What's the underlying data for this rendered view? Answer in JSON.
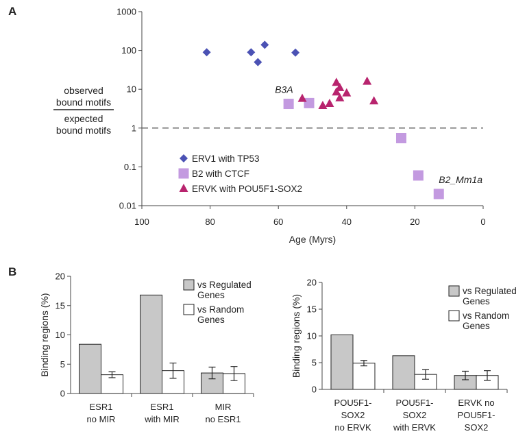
{
  "figure": {
    "panel_a": "A",
    "panel_b": "B"
  },
  "chart_data": [
    {
      "type": "scatter",
      "title": "",
      "xlabel": "Age (Myrs)",
      "ylabel_numerator": [
        "observed",
        "bound motifs"
      ],
      "ylabel_denominator": [
        "expected",
        "bound motifs"
      ],
      "x_reversed": true,
      "xlim": [
        100,
        0
      ],
      "ylim": [
        0.01,
        1000
      ],
      "y_scale": "log",
      "x_ticks": [
        "100",
        "80",
        "60",
        "40",
        "20",
        "0"
      ],
      "x_tick_values": [
        100,
        80,
        60,
        40,
        20,
        0
      ],
      "y_ticks": [
        "1000",
        "100",
        "10",
        "1",
        "0.1",
        "0.01"
      ],
      "y_tick_values": [
        1000,
        100,
        10,
        1,
        0.1,
        0.01
      ],
      "reference_line": {
        "y": 1,
        "style": "dashed"
      },
      "legend_position": "bottom-left",
      "series": [
        {
          "name": "ERV1 with TP53",
          "marker": "diamond",
          "color": "#4b52b4",
          "points": [
            [
              81,
              90
            ],
            [
              68,
              90
            ],
            [
              64,
              140
            ],
            [
              66,
              50
            ],
            [
              55,
              88
            ]
          ]
        },
        {
          "name": "B2 with CTCF",
          "marker": "square",
          "color": "#c39ae0",
          "points": [
            [
              57,
              4.2
            ],
            [
              51,
              4.4
            ],
            [
              24,
              0.55
            ],
            [
              19,
              0.06
            ],
            [
              13,
              0.02
            ]
          ]
        },
        {
          "name": "ERVK with POU5F1-SOX2",
          "marker": "triangle",
          "color": "#b8246e",
          "points": [
            [
              53,
              5.8
            ],
            [
              47,
              3.8
            ],
            [
              45,
              4.3
            ],
            [
              43,
              15
            ],
            [
              42,
              11
            ],
            [
              43,
              8.5
            ],
            [
              42,
              6
            ],
            [
              40,
              8
            ],
            [
              34,
              16
            ],
            [
              32,
              5
            ]
          ]
        }
      ],
      "annotations": [
        {
          "text": "B3A",
          "x": 61,
          "y": 8
        },
        {
          "text": "B2_Mm1a",
          "x": 13,
          "y": 0.038
        }
      ]
    },
    {
      "type": "bar",
      "title": "",
      "ylabel": "Binding regions (%)",
      "ylim": [
        0,
        20
      ],
      "y_ticks": [
        "0",
        "5",
        "10",
        "15",
        "20"
      ],
      "y_tick_values": [
        0,
        5,
        10,
        15,
        20
      ],
      "categories": [
        [
          "ESR1",
          "no MIR"
        ],
        [
          "ESR1",
          "with MIR"
        ],
        [
          "MIR",
          "no ESR1"
        ]
      ],
      "legend_position": "top-right",
      "series": [
        {
          "name": "vs Regulated Genes",
          "legend_lines": [
            "vs Regulated",
            "Genes"
          ],
          "color": "#c8c8c8",
          "values": [
            8.4,
            16.8,
            3.5
          ],
          "errors": [
            null,
            null,
            1.0
          ]
        },
        {
          "name": "vs Random Genes",
          "legend_lines": [
            "vs Random",
            "Genes"
          ],
          "color": "#ffffff",
          "values": [
            3.2,
            3.9,
            3.4
          ],
          "errors": [
            0.5,
            1.3,
            1.2
          ]
        }
      ]
    },
    {
      "type": "bar",
      "title": "",
      "ylabel": "Binding regions (%)",
      "ylim": [
        0,
        20
      ],
      "y_ticks": [
        "0",
        "5",
        "10",
        "15",
        "20"
      ],
      "y_tick_values": [
        0,
        5,
        10,
        15,
        20
      ],
      "categories": [
        [
          "POU5F1-",
          "SOX2",
          "no ERVK"
        ],
        [
          "POU5F1-",
          "SOX2",
          "with ERVK"
        ],
        [
          "ERVK no",
          "POU5F1-",
          "SOX2"
        ]
      ],
      "legend_position": "top-right",
      "series": [
        {
          "name": "vs Regulated Genes",
          "legend_lines": [
            "vs Regulated",
            "Genes"
          ],
          "color": "#c8c8c8",
          "values": [
            10.2,
            6.3,
            2.6
          ],
          "errors": [
            null,
            null,
            0.8
          ]
        },
        {
          "name": "vs Random Genes",
          "legend_lines": [
            "vs Random",
            "Genes"
          ],
          "color": "#ffffff",
          "values": [
            4.9,
            2.8,
            2.6
          ],
          "errors": [
            0.5,
            0.9,
            0.9
          ]
        }
      ]
    }
  ]
}
